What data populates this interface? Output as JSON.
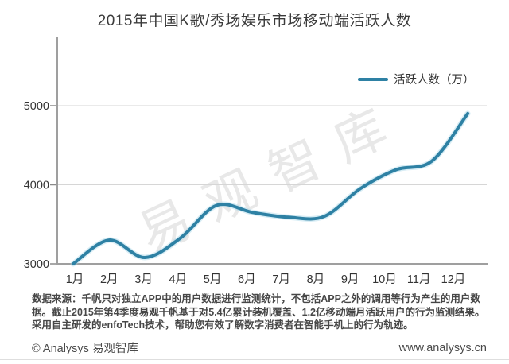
{
  "title": "2015年中国K歌/秀场娱乐市场移动端活跃人数",
  "legend": {
    "label": "活跃人数（万）"
  },
  "watermark": "易观智库",
  "chart_data": {
    "type": "line",
    "title": "2015年中国K歌/秀场娱乐市场移动端活跃人数",
    "categories": [
      "1月",
      "2月",
      "3月",
      "4月",
      "5月",
      "6月",
      "7月",
      "8月",
      "9月",
      "10月",
      "11月",
      "12月"
    ],
    "series": [
      {
        "name": "活跃人数（万）",
        "values": [
          3000,
          3300,
          3080,
          3330,
          3740,
          3650,
          3590,
          3600,
          3950,
          4190,
          4300,
          4900
        ]
      }
    ],
    "xlabel": "",
    "ylabel": "",
    "yticks": [
      3000,
      4000,
      5000
    ],
    "ylim": [
      3000,
      5100
    ],
    "grid": true,
    "smooth": true,
    "legend_position": "top-right"
  },
  "source_note": "数据来源：千帆只对独立APP中的用户数据进行监测统计，不包括APP之外的调用等行为产生的用户数据。截止2015年第4季度易观千帆基于对5.4亿累计装机覆盖、1.2亿移动端月活跃用户的行为监测结果。采用自主研发的enfoTech技术，帮助您有效了解数字消费者在智能手机上的行为轨迹。",
  "footer": {
    "copyright": "© Analysys 易观智库",
    "website": "www.analysys.cn"
  },
  "colors": {
    "line": "#2e81a4",
    "line_halo": "#9ed3e6",
    "grid_line": "#d6d6d6",
    "axis_line": "#9f9f9f",
    "tick_label": "#333333",
    "title_text": "#3b3b3b",
    "watermark": "#c9c9c9",
    "source_text": "#474747",
    "footer_text": "#4a4a4a"
  }
}
